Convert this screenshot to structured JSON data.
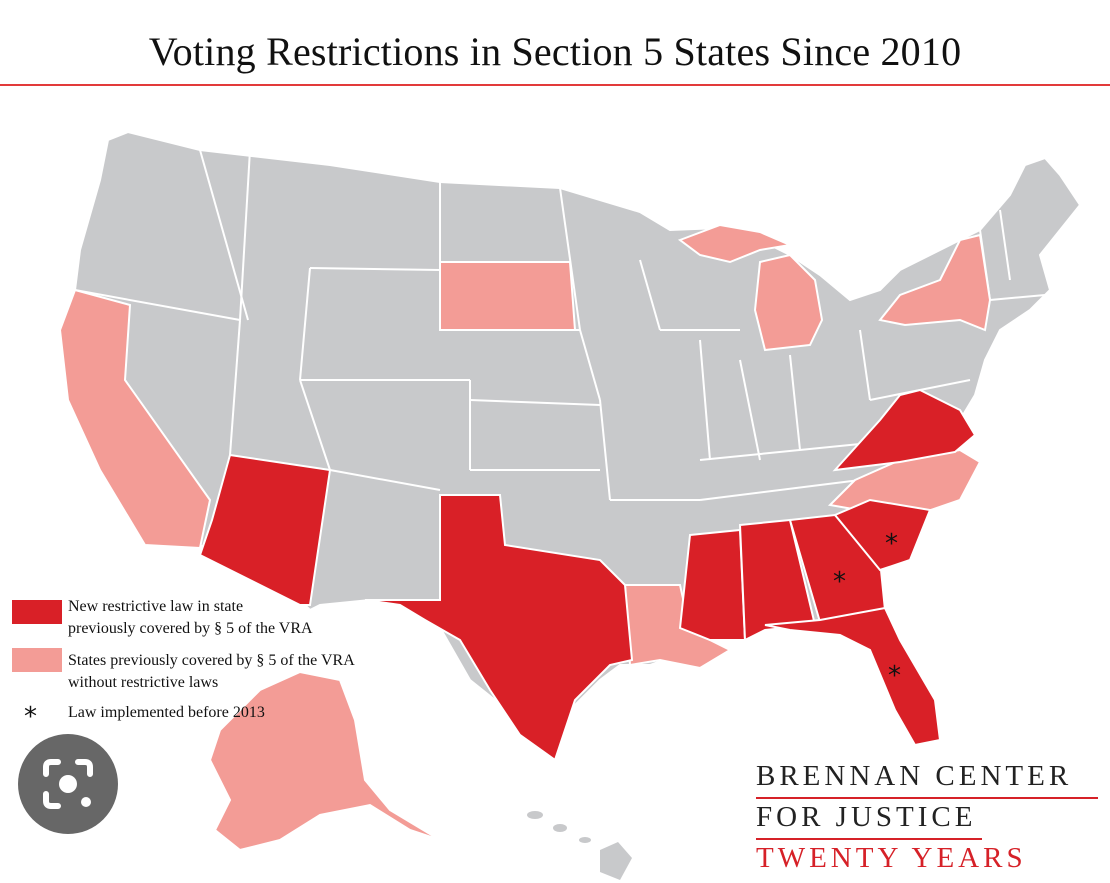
{
  "title": "Voting Restrictions in Section 5 States Since 2010",
  "colors": {
    "restrictive": "#d92027",
    "covered_without": "#f39c96",
    "other": "#c8c9cb",
    "border": "#ffffff",
    "accent": "#d62128"
  },
  "legend": {
    "restrictive_line1": "New restrictive law in state",
    "restrictive_line2": "previously covered by  § 5 of the VRA",
    "covered_line1": "States previously covered by  § 5 of the VRA",
    "covered_line2": "without restrictive laws",
    "asterisk": "*",
    "asterisk_label": "Law implemented before 2013"
  },
  "brand": {
    "line1": "BRENNAN CENTER",
    "line2": "FOR JUSTICE",
    "line3": "TWENTY YEARS"
  },
  "states": {
    "restrictive": [
      "Arizona",
      "Texas",
      "Mississippi",
      "Alabama",
      "Georgia",
      "South Carolina",
      "Florida",
      "Virginia"
    ],
    "covered_without_restrictive_laws": [
      "California",
      "South Dakota",
      "Michigan",
      "New York",
      "North Carolina",
      "Louisiana",
      "Alaska"
    ],
    "law_before_2013": [
      "South Carolina",
      "Georgia",
      "Florida"
    ]
  },
  "overlay_icon": "lens-camera-icon"
}
